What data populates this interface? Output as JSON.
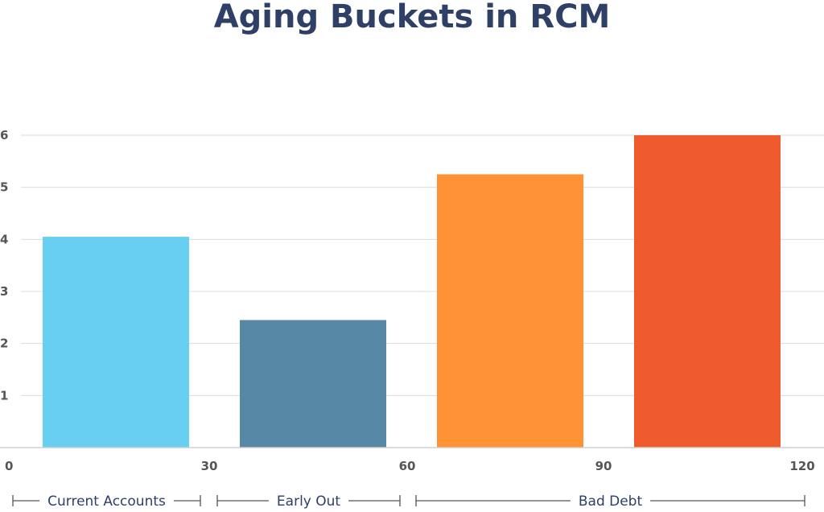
{
  "chart_data": {
    "type": "bar",
    "title": "Aging Buckets in RCM",
    "x_ticks": [
      "0",
      "30",
      "60",
      "90",
      "120"
    ],
    "y_ticks": [
      "1",
      "2",
      "3",
      "4",
      "5",
      "6"
    ],
    "ylim": [
      0,
      6
    ],
    "xlim": [
      0,
      120
    ],
    "grid": true,
    "legend": "none",
    "bars": [
      {
        "x_start": 0,
        "x_end": 30,
        "value": 4.05,
        "color": "#68cff2"
      },
      {
        "x_start": 30,
        "x_end": 60,
        "value": 2.45,
        "color": "#5788a6"
      },
      {
        "x_start": 60,
        "x_end": 90,
        "value": 5.25,
        "color": "#fe9234"
      },
      {
        "x_start": 90,
        "x_end": 120,
        "value": 6.0,
        "color": "#ef5b2d"
      }
    ],
    "buckets": [
      {
        "label": "Current Accounts",
        "x_start": 0,
        "x_end": 30
      },
      {
        "label": "Early Out",
        "x_start": 30,
        "x_end": 60
      },
      {
        "label": "Bad Debt",
        "x_start": 60,
        "x_end": 120
      }
    ]
  }
}
